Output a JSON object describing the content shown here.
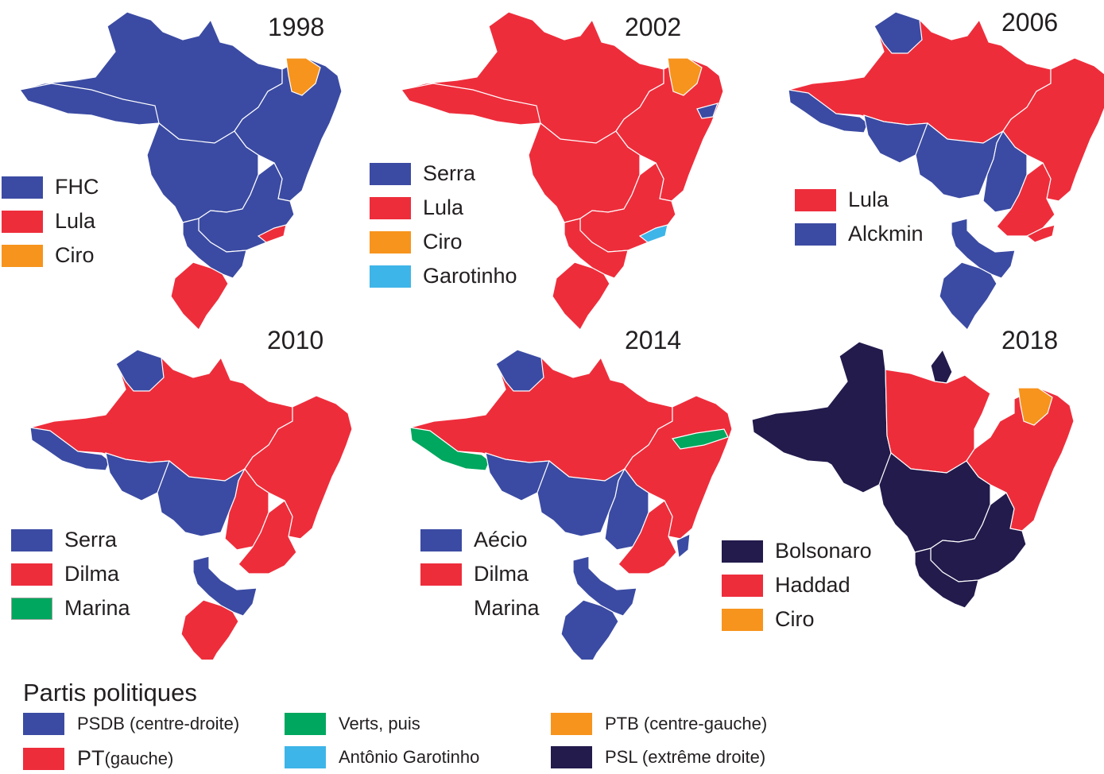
{
  "colors": {
    "psdb": "#3b4ba3",
    "pt": "#ee2d3b",
    "ptb": "#f7941d",
    "verts": "#00a75e",
    "garotinho": "#3eb5e8",
    "psl": "#221b4c",
    "border": "#ffffff"
  },
  "maps": [
    {
      "year": "1998",
      "legend": [
        {
          "label": "FHC",
          "color": "#3b4ba3"
        },
        {
          "label": "Lula",
          "color": "#ee2d3b"
        },
        {
          "label": "Ciro",
          "color": "#f7941d"
        }
      ],
      "regions": {
        "north": "psdb",
        "amazonas_west": "psdb",
        "ceara": "ptb",
        "northeast": "psdb",
        "center": "psdb",
        "southeast": "psdb",
        "rio": "pt",
        "south": "psdb",
        "rs": "pt"
      }
    },
    {
      "year": "2002",
      "legend": [
        {
          "label": "Serra",
          "color": "#3b4ba3"
        },
        {
          "label": "Lula",
          "color": "#ee2d3b"
        },
        {
          "label": "Ciro",
          "color": "#f7941d"
        },
        {
          "label": "Garotinho",
          "color": "#3eb5e8"
        }
      ],
      "regions": {
        "north": "pt",
        "amazonas_west": "pt",
        "ceara": "ptb",
        "northeast": "pt",
        "alagoas": "psdb",
        "center": "pt",
        "southeast": "pt",
        "rio": "garotinho",
        "south": "pt",
        "rs": "pt"
      }
    },
    {
      "year": "2006",
      "legend": [
        {
          "label": "Lula",
          "color": "#ee2d3b"
        },
        {
          "label": "Alckmin",
          "color": "#3b4ba3"
        }
      ],
      "regions": {
        "roraima": "psdb",
        "north": "pt",
        "acre": "psdb",
        "rondonia": "psdb",
        "mt": "psdb",
        "goias": "psdb",
        "northeast": "pt",
        "mg": "pt",
        "rio": "pt",
        "south": "psdb",
        "rs": "psdb"
      }
    },
    {
      "year": "2010",
      "legend": [
        {
          "label": "Serra",
          "color": "#3b4ba3"
        },
        {
          "label": "Dilma",
          "color": "#ee2d3b"
        },
        {
          "label": "Marina",
          "color": "#00a75e"
        }
      ],
      "regions": {
        "roraima": "psdb",
        "north": "pt",
        "acre": "psdb",
        "rondonia": "psdb",
        "mt": "psdb",
        "goias": "pt",
        "northeast": "pt",
        "mg": "pt",
        "south": "psdb",
        "rs": "pt"
      }
    },
    {
      "year": "2014",
      "legend": [
        {
          "label": "Aécio",
          "color": "#3b4ba3"
        },
        {
          "label": "Dilma",
          "color": "#ee2d3b"
        },
        {
          "label": "Marina",
          "color": ""
        }
      ],
      "regions": {
        "roraima": "psdb",
        "north": "pt",
        "acre": "verts",
        "rondonia": "psdb",
        "mt": "psdb",
        "goias": "psdb",
        "pernambuco": "verts",
        "northeast": "pt",
        "mg": "pt",
        "es": "psdb",
        "south": "psdb",
        "rs": "psdb"
      }
    },
    {
      "year": "2018",
      "legend": [
        {
          "label": "Bolsonaro",
          "color": "#221b4c"
        },
        {
          "label": "Haddad",
          "color": "#ee2d3b"
        },
        {
          "label": "Ciro",
          "color": "#f7941d"
        }
      ],
      "regions": {
        "north_west": "psl",
        "para": "pt",
        "amapa": "psl",
        "ceara": "ptb",
        "northeast": "pt",
        "tocantins": "psl",
        "center": "psl",
        "southeast": "psl",
        "south": "psl"
      }
    }
  ],
  "parties": {
    "title": "Partis politiques",
    "items": [
      {
        "name": "PSDB (centre-droite)",
        "color": "#3b4ba3"
      },
      {
        "name_big": "PT",
        "name": " (gauche)",
        "color": "#ee2d3b"
      },
      {
        "name": "Verts, puis",
        "color": "#00a75e"
      },
      {
        "name": "Antônio Garotinho",
        "color": "#3eb5e8"
      },
      {
        "name": "PTB (centre-gauche)",
        "color": "#f7941d"
      },
      {
        "name": "PSL (extrême droite)",
        "color": "#221b4c"
      }
    ]
  }
}
